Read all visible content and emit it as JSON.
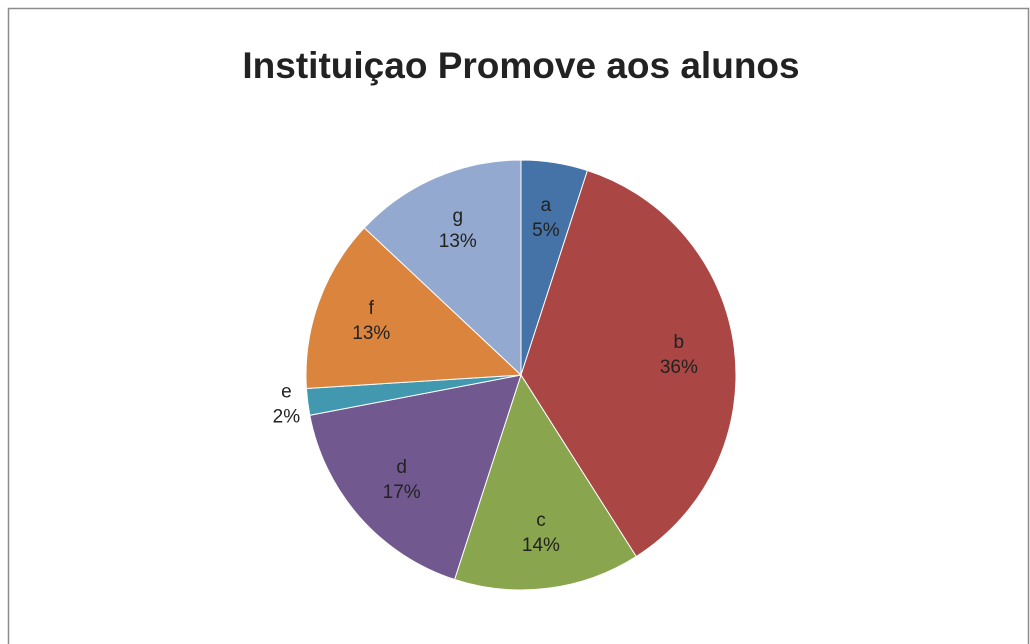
{
  "chart_data": {
    "type": "pie",
    "title": "Instituiçao Promove aos alunos",
    "categories": [
      "a",
      "b",
      "c",
      "d",
      "e",
      "f",
      "g"
    ],
    "values": [
      5,
      36,
      14,
      17,
      2,
      13,
      13
    ],
    "value_labels": [
      "5%",
      "36%",
      "14%",
      "17%",
      "2%",
      "13%",
      "13%"
    ],
    "colors": [
      "#4572a7",
      "#aa4643",
      "#89a54e",
      "#71588f",
      "#4198af",
      "#db843d",
      "#93a9cf"
    ]
  }
}
